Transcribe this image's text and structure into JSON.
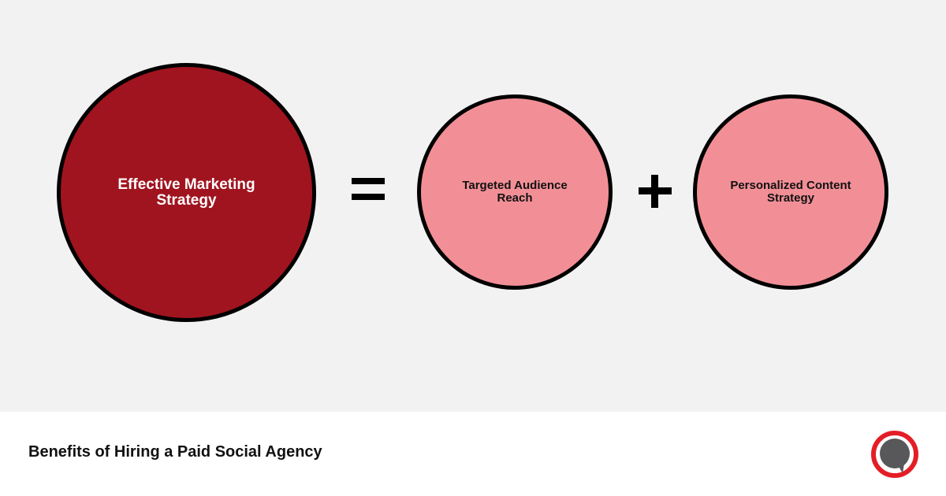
{
  "diagram": {
    "result": "Effective Marketing Strategy",
    "equals_symbol": "=",
    "term1": "Targeted Audience Reach",
    "plus_symbol": "+",
    "term2": "Personalized Content Strategy"
  },
  "footer": {
    "title": "Benefits of Hiring a Paid Social Agency",
    "logo": "speech-bubble-logo-icon"
  },
  "colors": {
    "result_fill": "#a0141f",
    "term_fill": "#f28f96",
    "background": "#f2f2f2",
    "logo_ring": "#e31e26",
    "logo_bubble": "#58585a"
  }
}
